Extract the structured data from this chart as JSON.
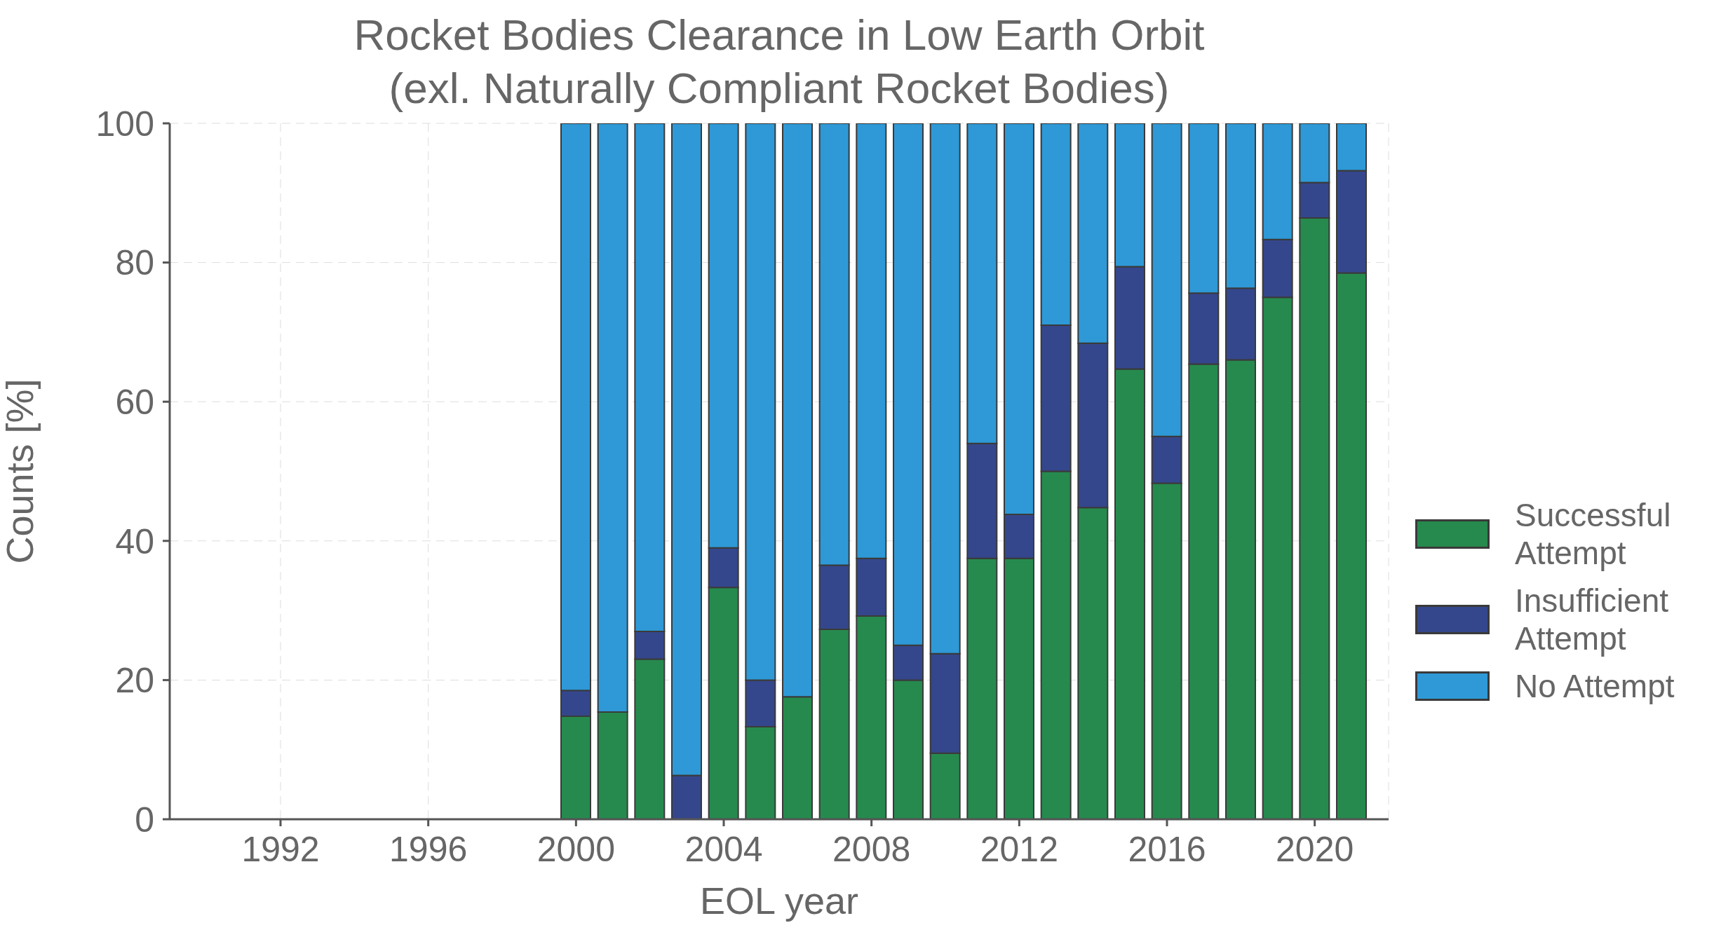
{
  "chart_data": {
    "type": "bar",
    "title": "Rocket Bodies Clearance in Low Earth Orbit",
    "subtitle": "(exl. Naturally Compliant Rocket Bodies)",
    "xlabel": "EOL year",
    "ylabel": "Counts [%]",
    "x": [
      2000,
      2001,
      2002,
      2003,
      2004,
      2005,
      2006,
      2007,
      2008,
      2009,
      2010,
      2011,
      2012,
      2013,
      2014,
      2015,
      2016,
      2017,
      2018,
      2019,
      2020,
      2021
    ],
    "stacked": true,
    "series": [
      {
        "name": "Successful Attempt",
        "color": "#268a4e",
        "values": [
          14.8,
          15.4,
          23,
          0,
          33.3,
          13.3,
          17.6,
          27.3,
          29.2,
          20,
          9.5,
          37.5,
          37.5,
          50,
          44.8,
          64.7,
          48.3,
          65.4,
          66,
          75,
          86.4,
          78.5
        ]
      },
      {
        "name": "Insufficient Attempt",
        "color": "#34478c",
        "values": [
          3.7,
          0,
          4,
          6.3,
          5.7,
          6.7,
          0,
          9.2,
          8.3,
          5,
          14.3,
          16.5,
          6.3,
          21,
          23.6,
          14.7,
          6.7,
          10.2,
          10.3,
          8.3,
          5.1,
          14.7
        ]
      },
      {
        "name": "No Attempt",
        "color": "#2e99d6",
        "values": [
          81.5,
          84.6,
          73,
          93.7,
          61,
          80,
          82.4,
          63.5,
          62.5,
          75,
          76.2,
          46,
          56.2,
          29,
          31.6,
          20.6,
          45,
          24.4,
          23.7,
          16.7,
          8.5,
          6.8
        ]
      }
    ],
    "xlim": [
      1989,
      2022
    ],
    "xticks": [
      1992,
      1996,
      2000,
      2004,
      2008,
      2012,
      2016,
      2020
    ],
    "ylim": [
      0,
      100
    ],
    "yticks": [
      0,
      20,
      40,
      60,
      80,
      100
    ],
    "grid": true,
    "legend": "right"
  }
}
